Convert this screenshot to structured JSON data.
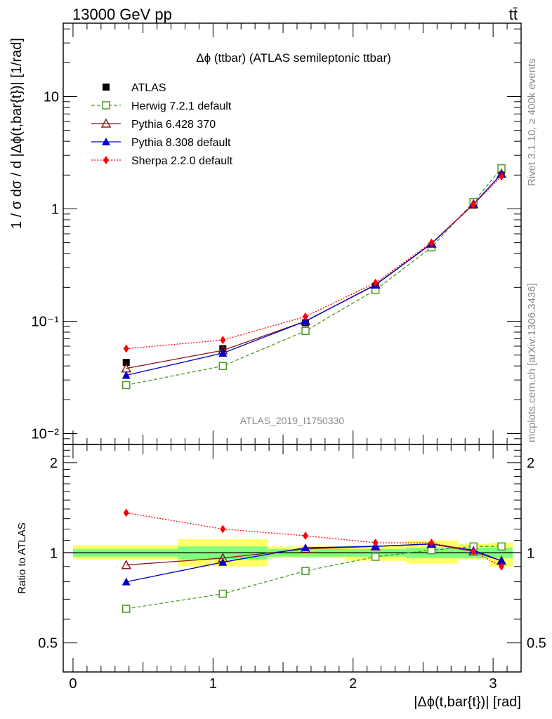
{
  "header": {
    "beam": "13000 GeV pp",
    "process": "tt̄"
  },
  "side_labels": {
    "rivet": "Rivet 3.1.10, ≥ 400k events",
    "source": "mcplots.cern.ch [arXiv:1306.3436]"
  },
  "chart_data": [
    {
      "type": "line",
      "title": "Δϕ (ttbar) (ATLAS semileptonic ttbar)",
      "watermark": "ATLAS_2019_I1750330",
      "ylabel": "1 / σ dσ / d |Δϕ(t,bar{t})| [1/rad]",
      "yscale": "log",
      "ylim": [
        0.008,
        45
      ],
      "xlim": [
        -0.07,
        3.2
      ],
      "yticks": [
        {
          "value": 10,
          "label": "10"
        },
        {
          "value": 1,
          "label": "1"
        },
        {
          "value": 0.1,
          "label": "10⁻¹"
        },
        {
          "value": 0.01,
          "label": "10⁻²"
        }
      ],
      "legend_position": "top-left",
      "x": [
        0.38,
        1.07,
        1.66,
        2.16,
        2.56,
        2.86,
        3.06
      ],
      "bins": [
        [
          0,
          0.75
        ],
        [
          0.75,
          1.39
        ],
        [
          1.39,
          1.94
        ],
        [
          1.94,
          2.38
        ],
        [
          2.38,
          2.75
        ],
        [
          2.75,
          2.97
        ],
        [
          2.97,
          3.14
        ]
      ],
      "series": [
        {
          "name": "ATLAS",
          "color": "#000000",
          "marker": "filled-square",
          "line": "none",
          "values": [
            0.043,
            0.057,
            0.097,
            0.205,
            0.455,
            1.08,
            2.2
          ]
        },
        {
          "name": "Herwig 7.2.1 default",
          "color": "#4a9a22",
          "marker": "open-square",
          "line": "dashed",
          "values": [
            0.027,
            0.04,
            0.082,
            0.19,
            0.455,
            1.15,
            2.3
          ]
        },
        {
          "name": "Pythia 6.428 370",
          "color": "#8b1a1a",
          "marker": "open-triangle",
          "line": "solid",
          "values": [
            0.038,
            0.055,
            0.1,
            0.212,
            0.49,
            1.1,
            2.05
          ]
        },
        {
          "name": "Pythia 8.308 default",
          "color": "#0000cc",
          "marker": "filled-triangle",
          "line": "solid",
          "values": [
            0.033,
            0.052,
            0.1,
            0.21,
            0.49,
            1.1,
            2.05
          ]
        },
        {
          "name": "Sherpa 2.2.0 default",
          "color": "#ff0000",
          "marker": "filled-diamond",
          "line": "dotted",
          "values": [
            0.057,
            0.068,
            0.11,
            0.22,
            0.5,
            1.09,
            1.95
          ]
        }
      ]
    },
    {
      "type": "line",
      "ylabel": "Ratio to ATLAS",
      "xlabel": "|Δϕ(t,bar{t})| [rad]",
      "yscale": "log",
      "ylim": [
        0.4,
        2.3
      ],
      "xlim": [
        -0.07,
        3.2
      ],
      "yticks": [
        {
          "value": 2,
          "label": "2"
        },
        {
          "value": 1,
          "label": "1"
        },
        {
          "value": 0.5,
          "label": "0.5"
        }
      ],
      "xticks": [
        {
          "value": 0,
          "label": "0"
        },
        {
          "value": 1,
          "label": "1"
        },
        {
          "value": 2,
          "label": "2"
        },
        {
          "value": 3,
          "label": "3"
        }
      ],
      "x": [
        0.38,
        1.07,
        1.66,
        2.16,
        2.56,
        2.86,
        3.06
      ],
      "bins": [
        [
          0,
          0.75
        ],
        [
          0.75,
          1.39
        ],
        [
          1.39,
          1.94
        ],
        [
          1.94,
          2.38
        ],
        [
          2.38,
          2.75
        ],
        [
          2.75,
          2.97
        ],
        [
          2.97,
          3.14
        ]
      ],
      "uncertainty_bands": {
        "stat_color": "#80ff80",
        "total_color": "#ffff66",
        "stat": [
          [
            0.97,
            1.03
          ],
          [
            0.95,
            1.05
          ],
          [
            0.97,
            1.03
          ],
          [
            0.97,
            1.03
          ],
          [
            0.96,
            1.04
          ],
          [
            0.96,
            1.04
          ],
          [
            0.96,
            1.04
          ]
        ],
        "total": [
          [
            0.95,
            1.06
          ],
          [
            0.9,
            1.11
          ],
          [
            0.96,
            1.05
          ],
          [
            0.94,
            1.06
          ],
          [
            0.92,
            1.1
          ],
          [
            0.95,
            1.07
          ],
          [
            0.9,
            1.08
          ]
        ]
      },
      "series": [
        {
          "name": "Herwig 7.2.1 default",
          "color": "#4a9a22",
          "marker": "open-square",
          "line": "dashed",
          "values": [
            0.65,
            0.73,
            0.87,
            0.97,
            1.02,
            1.05,
            1.05
          ]
        },
        {
          "name": "Pythia 6.428 370",
          "color": "#8b1a1a",
          "marker": "open-triangle",
          "line": "solid",
          "values": [
            0.91,
            0.96,
            1.03,
            1.05,
            1.07,
            1.01,
            0.94
          ]
        },
        {
          "name": "Pythia 8.308 default",
          "color": "#0000cc",
          "marker": "filled-triangle",
          "line": "solid",
          "values": [
            0.8,
            0.93,
            1.04,
            1.05,
            1.07,
            1.02,
            0.94
          ]
        },
        {
          "name": "Sherpa 2.2.0 default",
          "color": "#ff0000",
          "marker": "filled-diamond",
          "line": "dotted",
          "values": [
            1.36,
            1.2,
            1.14,
            1.08,
            1.08,
            1.01,
            0.9
          ]
        }
      ]
    }
  ]
}
